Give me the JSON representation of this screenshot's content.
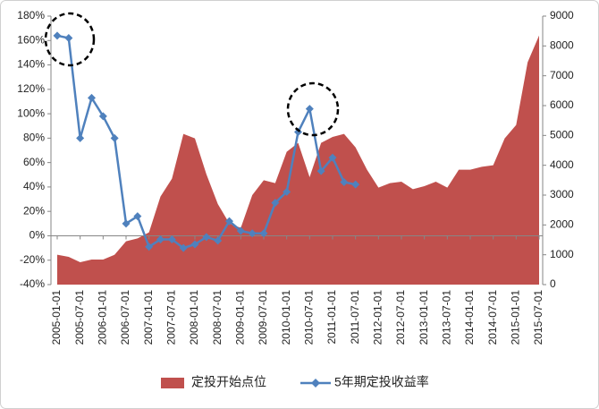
{
  "chart_data": {
    "type": "area_line",
    "categories": [
      "2005-01-01",
      null,
      "2005-07-01",
      null,
      "2006-01-01",
      null,
      "2006-07-01",
      null,
      "2007-01-01",
      null,
      "2007-07-01",
      null,
      "2008-01-01",
      null,
      "2008-07-01",
      null,
      "2009-01-01",
      null,
      "2009-07-01",
      null,
      "2010-01-01",
      null,
      "2010-07-01",
      null,
      "2011-01-01",
      null,
      "2011-07-01",
      null,
      "2012-01-01",
      null,
      "2012-07-01",
      null,
      "2013-01-01",
      null,
      "2013-07-01",
      null,
      "2014-01-01",
      null,
      "2014-07-01",
      null,
      "2015-01-01",
      null,
      "2015-07-01"
    ],
    "series": [
      {
        "name": "定投开始点位",
        "color": "#c0504d",
        "axis": "y2",
        "kind": "area",
        "values": [
          1000,
          930,
          750,
          840,
          840,
          1000,
          1450,
          1550,
          1750,
          2950,
          3550,
          5050,
          4900,
          3700,
          2700,
          2050,
          1900,
          3000,
          3500,
          3400,
          4450,
          4750,
          3600,
          4750,
          4950,
          5050,
          4600,
          3850,
          3250,
          3400,
          3450,
          3200,
          3300,
          3450,
          3250,
          3850,
          3850,
          3950,
          4000,
          4900,
          5350,
          7450,
          8350
        ]
      },
      {
        "name": "5年期定投收益率",
        "color": "#4f81bd",
        "axis": "y",
        "kind": "line",
        "values": [
          164,
          162,
          80,
          113,
          98,
          80,
          10,
          16,
          -9,
          -3,
          -3,
          -10,
          -7,
          -1,
          -4,
          12,
          4,
          2,
          2,
          27,
          36,
          85,
          104,
          53,
          64,
          44,
          42,
          null,
          null,
          null,
          null,
          null,
          null,
          null,
          null,
          null,
          null,
          null,
          null,
          null,
          null,
          null,
          null
        ]
      }
    ],
    "ylim": [
      -40,
      180
    ],
    "yticks": [
      {
        "value": -40,
        "label": "-40%"
      },
      {
        "value": -20,
        "label": "-20%"
      },
      {
        "value": 0,
        "label": "0%"
      },
      {
        "value": 20,
        "label": "20%"
      },
      {
        "value": 40,
        "label": "40%"
      },
      {
        "value": 60,
        "label": "60%"
      },
      {
        "value": 80,
        "label": "80%"
      },
      {
        "value": 100,
        "label": "100%"
      },
      {
        "value": 120,
        "label": "120%"
      },
      {
        "value": 140,
        "label": "140%"
      },
      {
        "value": 160,
        "label": "160%"
      },
      {
        "value": 180,
        "label": "180%"
      }
    ],
    "y2lim": [
      0,
      9000
    ],
    "y2ticks": [
      0,
      1000,
      2000,
      3000,
      4000,
      5000,
      6000,
      7000,
      8000,
      9000
    ],
    "legend": "bottom"
  }
}
